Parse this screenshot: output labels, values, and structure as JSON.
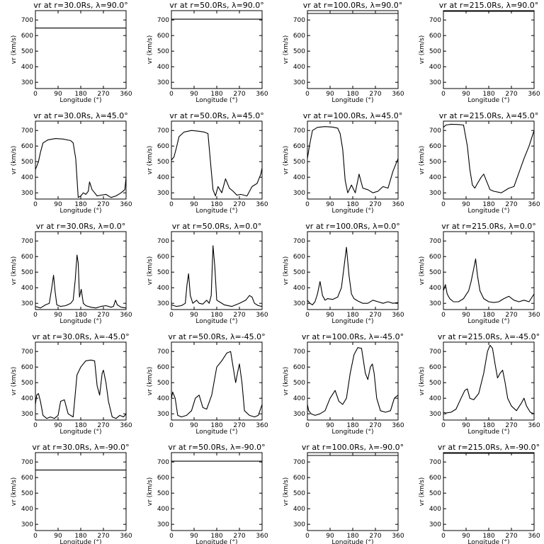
{
  "chart_data": [
    {
      "type": "line",
      "title": "vr at r=30.0Rs, λ=90.0°",
      "xlabel": "Longitude (°)",
      "ylabel": "vr (km/s)",
      "xlim": [
        0,
        360
      ],
      "ylim": [
        260,
        760
      ],
      "xticks": [
        "0",
        "90",
        "180",
        "270",
        "360"
      ],
      "yticks": [
        "300",
        "400",
        "500",
        "600",
        "700"
      ],
      "x": [
        0,
        360
      ],
      "y": [
        648,
        648
      ]
    },
    {
      "type": "line",
      "title": "vr at r=50.0Rs, λ=90.0°",
      "xlabel": "Longitude (°)",
      "ylabel": "vr (km/s)",
      "xlim": [
        0,
        360
      ],
      "ylim": [
        260,
        760
      ],
      "xticks": [
        "0",
        "90",
        "180",
        "270",
        "360"
      ],
      "yticks": [
        "300",
        "400",
        "500",
        "600",
        "700"
      ],
      "x": [
        0,
        360
      ],
      "y": [
        705,
        705
      ]
    },
    {
      "type": "line",
      "title": "vr at r=100.0Rs, λ=90.0°",
      "xlabel": "Longitude (°)",
      "ylabel": "vr (km/s)",
      "xlim": [
        0,
        360
      ],
      "ylim": [
        260,
        760
      ],
      "xticks": [
        "0",
        "90",
        "180",
        "270",
        "360"
      ],
      "yticks": [
        "300",
        "400",
        "500",
        "600",
        "700"
      ],
      "x": [
        0,
        360
      ],
      "y": [
        742,
        742
      ]
    },
    {
      "type": "line",
      "title": "vr at r=215.0Rs, λ=90.0°",
      "xlabel": "Longitude (°)",
      "ylabel": "vr (km/s)",
      "xlim": [
        0,
        360
      ],
      "ylim": [
        260,
        760
      ],
      "xticks": [
        "0",
        "90",
        "180",
        "270",
        "360"
      ],
      "yticks": [
        "300",
        "400",
        "500",
        "600",
        "700"
      ],
      "x": [
        0,
        360
      ],
      "y": [
        756,
        756
      ]
    },
    {
      "type": "line",
      "title": "vr at r=30.0Rs, λ=45.0°",
      "xlabel": "Longitude (°)",
      "ylabel": "vr (km/s)",
      "xlim": [
        0,
        360
      ],
      "ylim": [
        260,
        760
      ],
      "xticks": [
        "0",
        "90",
        "180",
        "270",
        "360"
      ],
      "yticks": [
        "300",
        "400",
        "500",
        "600",
        "700"
      ],
      "x": [
        0,
        5,
        12,
        20,
        30,
        50,
        80,
        110,
        140,
        150,
        160,
        170,
        180,
        190,
        200,
        210,
        215,
        225,
        235,
        245,
        260,
        280,
        300,
        320,
        340,
        355,
        360
      ],
      "y": [
        450,
        470,
        500,
        560,
        620,
        640,
        648,
        645,
        635,
        620,
        520,
        270,
        280,
        300,
        290,
        310,
        370,
        320,
        300,
        280,
        285,
        290,
        270,
        280,
        300,
        320,
        400
      ]
    },
    {
      "type": "line",
      "title": "vr at r=50.0Rs, λ=45.0°",
      "xlabel": "Longitude (°)",
      "ylabel": "vr (km/s)",
      "xlim": [
        0,
        360
      ],
      "ylim": [
        260,
        760
      ],
      "xticks": [
        "0",
        "90",
        "180",
        "270",
        "360"
      ],
      "yticks": [
        "300",
        "400",
        "500",
        "600",
        "700"
      ],
      "x": [
        0,
        10,
        20,
        30,
        50,
        80,
        110,
        130,
        145,
        155,
        165,
        175,
        185,
        200,
        215,
        230,
        245,
        260,
        275,
        300,
        320,
        340,
        355,
        360
      ],
      "y": [
        510,
        530,
        590,
        660,
        690,
        700,
        695,
        690,
        680,
        500,
        320,
        280,
        340,
        300,
        390,
        330,
        310,
        285,
        290,
        280,
        340,
        360,
        420,
        460
      ]
    },
    {
      "type": "line",
      "title": "vr at r=100.0Rs, λ=45.0°",
      "xlabel": "Longitude (°)",
      "ylabel": "vr (km/s)",
      "xlim": [
        0,
        360
      ],
      "ylim": [
        260,
        760
      ],
      "xticks": [
        "0",
        "90",
        "180",
        "270",
        "360"
      ],
      "yticks": [
        "300",
        "400",
        "500",
        "600",
        "700"
      ],
      "x": [
        0,
        8,
        20,
        40,
        70,
        100,
        120,
        130,
        140,
        150,
        160,
        175,
        190,
        205,
        220,
        240,
        260,
        280,
        300,
        320,
        340,
        360
      ],
      "y": [
        520,
        600,
        700,
        720,
        725,
        722,
        715,
        680,
        580,
        380,
        300,
        350,
        300,
        420,
        330,
        320,
        300,
        310,
        340,
        330,
        440,
        520
      ]
    },
    {
      "type": "line",
      "title": "vr at r=215.0Rs, λ=45.0°",
      "xlabel": "Longitude (°)",
      "ylabel": "vr (km/s)",
      "xlim": [
        0,
        360
      ],
      "ylim": [
        260,
        760
      ],
      "xticks": [
        "0",
        "90",
        "180",
        "270",
        "360"
      ],
      "yticks": [
        "300",
        "400",
        "500",
        "600",
        "700"
      ],
      "x": [
        0,
        10,
        30,
        60,
        80,
        95,
        105,
        115,
        125,
        135,
        150,
        160,
        170,
        185,
        200,
        230,
        260,
        280,
        300,
        320,
        340,
        360
      ],
      "y": [
        720,
        735,
        740,
        738,
        735,
        600,
        450,
        350,
        330,
        360,
        400,
        420,
        380,
        320,
        310,
        300,
        330,
        340,
        430,
        520,
        600,
        700
      ]
    },
    {
      "type": "line",
      "title": "vr at r=30.0Rs, λ=0.0°",
      "xlabel": "Longitude (°)",
      "ylabel": "vr (km/s)",
      "xlim": [
        0,
        360
      ],
      "ylim": [
        260,
        760
      ],
      "xticks": [
        "0",
        "90",
        "180",
        "270",
        "360"
      ],
      "yticks": [
        "300",
        "400",
        "500",
        "600",
        "700"
      ],
      "x": [
        0,
        20,
        40,
        55,
        65,
        72,
        78,
        85,
        100,
        120,
        140,
        150,
        158,
        165,
        170,
        175,
        182,
        190,
        200,
        220,
        240,
        260,
        280,
        300,
        310,
        318,
        325,
        340,
        360
      ],
      "y": [
        280,
        270,
        290,
        300,
        400,
        480,
        380,
        290,
        280,
        285,
        300,
        320,
        450,
        610,
        560,
        340,
        390,
        300,
        285,
        275,
        270,
        280,
        285,
        275,
        280,
        320,
        290,
        275,
        270
      ]
    },
    {
      "type": "line",
      "title": "vr at r=50.0Rs, λ=0.0°",
      "xlabel": "Longitude (°)",
      "ylabel": "vr (km/s)",
      "xlim": [
        0,
        360
      ],
      "ylim": [
        260,
        760
      ],
      "xticks": [
        "0",
        "90",
        "180",
        "270",
        "360"
      ],
      "yticks": [
        "300",
        "400",
        "500",
        "600",
        "700"
      ],
      "x": [
        0,
        20,
        40,
        55,
        62,
        68,
        75,
        85,
        100,
        110,
        125,
        140,
        150,
        158,
        165,
        172,
        180,
        190,
        210,
        240,
        270,
        295,
        310,
        320,
        330,
        345,
        360
      ],
      "y": [
        290,
        280,
        285,
        300,
        420,
        490,
        350,
        300,
        320,
        300,
        295,
        320,
        300,
        350,
        670,
        540,
        320,
        310,
        290,
        280,
        300,
        320,
        350,
        340,
        300,
        285,
        280
      ]
    },
    {
      "type": "line",
      "title": "vr at r=100.0Rs, λ=0.0°",
      "xlabel": "Longitude (°)",
      "ylabel": "vr (km/s)",
      "xlim": [
        0,
        360
      ],
      "ylim": [
        260,
        760
      ],
      "xticks": [
        "0",
        "90",
        "180",
        "270",
        "360"
      ],
      "yticks": [
        "300",
        "400",
        "500",
        "600",
        "700"
      ],
      "x": [
        0,
        10,
        20,
        30,
        40,
        50,
        60,
        70,
        80,
        100,
        120,
        135,
        145,
        155,
        165,
        175,
        185,
        200,
        220,
        240,
        260,
        280,
        300,
        320,
        340,
        360
      ],
      "y": [
        320,
        300,
        290,
        310,
        360,
        440,
        350,
        320,
        330,
        325,
        340,
        400,
        530,
        660,
        480,
        360,
        330,
        315,
        300,
        300,
        320,
        310,
        300,
        310,
        300,
        305
      ]
    },
    {
      "type": "line",
      "title": "vr at r=215.0Rs, λ=0.0°",
      "xlabel": "Longitude (°)",
      "ylabel": "vr (km/s)",
      "xlim": [
        0,
        360
      ],
      "ylim": [
        260,
        760
      ],
      "xticks": [
        "0",
        "90",
        "180",
        "270",
        "360"
      ],
      "yticks": [
        "300",
        "400",
        "500",
        "600",
        "700"
      ],
      "x": [
        0,
        8,
        15,
        25,
        40,
        60,
        80,
        100,
        110,
        120,
        128,
        135,
        145,
        160,
        180,
        200,
        220,
        240,
        260,
        280,
        300,
        320,
        340,
        360
      ],
      "y": [
        380,
        420,
        360,
        330,
        310,
        310,
        330,
        380,
        440,
        520,
        585,
        480,
        380,
        330,
        310,
        305,
        310,
        330,
        345,
        320,
        310,
        320,
        310,
        360
      ]
    },
    {
      "type": "line",
      "title": "vr at r=30.0Rs, λ=-45.0°",
      "xlabel": "Longitude (°)",
      "ylabel": "vr (km/s)",
      "xlim": [
        0,
        360
      ],
      "ylim": [
        260,
        760
      ],
      "xticks": [
        "0",
        "90",
        "180",
        "270",
        "360"
      ],
      "yticks": [
        "300",
        "400",
        "500",
        "600",
        "700"
      ],
      "x": [
        0,
        5,
        12,
        20,
        30,
        45,
        60,
        75,
        90,
        100,
        115,
        130,
        150,
        165,
        180,
        200,
        220,
        235,
        245,
        255,
        265,
        270,
        280,
        290,
        305,
        320,
        335,
        350,
        360
      ],
      "y": [
        360,
        420,
        430,
        380,
        290,
        270,
        280,
        270,
        290,
        380,
        390,
        300,
        280,
        550,
        600,
        640,
        645,
        640,
        480,
        420,
        560,
        580,
        500,
        380,
        280,
        270,
        290,
        280,
        300
      ]
    },
    {
      "type": "line",
      "title": "vr at r=50.0Rs, λ=-45.0°",
      "xlabel": "Longitude (°)",
      "ylabel": "vr (km/s)",
      "xlim": [
        0,
        360
      ],
      "ylim": [
        260,
        760
      ],
      "xticks": [
        "0",
        "90",
        "180",
        "270",
        "360"
      ],
      "yticks": [
        "300",
        "400",
        "500",
        "600",
        "700"
      ],
      "x": [
        0,
        5,
        15,
        25,
        40,
        60,
        80,
        95,
        110,
        125,
        140,
        160,
        180,
        200,
        220,
        235,
        245,
        255,
        262,
        270,
        280,
        290,
        310,
        330,
        345,
        360
      ],
      "y": [
        400,
        440,
        400,
        290,
        280,
        290,
        320,
        400,
        420,
        340,
        330,
        420,
        600,
        640,
        690,
        700,
        600,
        500,
        560,
        620,
        500,
        320,
        290,
        280,
        290,
        360
      ]
    },
    {
      "type": "line",
      "title": "vr at r=100.0Rs, λ=-45.0°",
      "xlabel": "Longitude (°)",
      "ylabel": "vr (km/s)",
      "xlim": [
        0,
        360
      ],
      "ylim": [
        260,
        760
      ],
      "xticks": [
        "0",
        "90",
        "180",
        "270",
        "360"
      ],
      "yticks": [
        "300",
        "400",
        "500",
        "600",
        "700"
      ],
      "x": [
        0,
        5,
        15,
        30,
        50,
        70,
        90,
        110,
        125,
        140,
        155,
        170,
        185,
        200,
        215,
        230,
        240,
        250,
        258,
        265,
        275,
        290,
        310,
        330,
        345,
        360
      ],
      "y": [
        360,
        320,
        300,
        290,
        300,
        320,
        400,
        450,
        380,
        360,
        400,
        560,
        680,
        725,
        720,
        560,
        520,
        600,
        620,
        560,
        400,
        320,
        310,
        320,
        400,
        420
      ]
    },
    {
      "type": "line",
      "title": "vr at r=215.0Rs, λ=-45.0°",
      "xlabel": "Longitude (°)",
      "ylabel": "vr (km/s)",
      "xlim": [
        0,
        360
      ],
      "ylim": [
        260,
        760
      ],
      "xticks": [
        "0",
        "90",
        "180",
        "270",
        "360"
      ],
      "yticks": [
        "300",
        "400",
        "500",
        "600",
        "700"
      ],
      "x": [
        0,
        10,
        30,
        50,
        70,
        85,
        95,
        105,
        120,
        140,
        160,
        175,
        185,
        195,
        205,
        215,
        225,
        235,
        245,
        255,
        270,
        290,
        310,
        320,
        330,
        345,
        360
      ],
      "y": [
        310,
        305,
        310,
        330,
        400,
        450,
        460,
        400,
        390,
        430,
        560,
        700,
        740,
        720,
        620,
        530,
        560,
        580,
        500,
        400,
        350,
        320,
        370,
        400,
        350,
        310,
        300
      ]
    },
    {
      "type": "line",
      "title": "vr at r=30.0Rs, λ=-90.0°",
      "xlabel": "Longitude (°)",
      "ylabel": "vr (km/s)",
      "xlim": [
        0,
        360
      ],
      "ylim": [
        260,
        760
      ],
      "xticks": [
        "0",
        "90",
        "180",
        "270",
        "360"
      ],
      "yticks": [
        "300",
        "400",
        "500",
        "600",
        "700"
      ],
      "x": [
        0,
        360
      ],
      "y": [
        648,
        648
      ]
    },
    {
      "type": "line",
      "title": "vr at r=50.0Rs, λ=-90.0°",
      "xlabel": "Longitude (°)",
      "ylabel": "vr (km/s)",
      "xlim": [
        0,
        360
      ],
      "ylim": [
        260,
        760
      ],
      "xticks": [
        "0",
        "90",
        "180",
        "270",
        "360"
      ],
      "yticks": [
        "300",
        "400",
        "500",
        "600",
        "700"
      ],
      "x": [
        0,
        360
      ],
      "y": [
        705,
        705
      ]
    },
    {
      "type": "line",
      "title": "vr at r=100.0Rs, λ=-90.0°",
      "xlabel": "Longitude (°)",
      "ylabel": "vr (km/s)",
      "xlim": [
        0,
        360
      ],
      "ylim": [
        260,
        760
      ],
      "xticks": [
        "0",
        "90",
        "180",
        "270",
        "360"
      ],
      "yticks": [
        "300",
        "400",
        "500",
        "600",
        "700"
      ],
      "x": [
        0,
        360
      ],
      "y": [
        742,
        742
      ]
    },
    {
      "type": "line",
      "title": "vr at r=215.0Rs, λ=-90.0°",
      "xlabel": "Longitude (°)",
      "ylabel": "vr (km/s)",
      "xlim": [
        0,
        360
      ],
      "ylim": [
        260,
        760
      ],
      "xticks": [
        "0",
        "90",
        "180",
        "270",
        "360"
      ],
      "yticks": [
        "300",
        "400",
        "500",
        "600",
        "700"
      ],
      "x": [
        0,
        360
      ],
      "y": [
        756,
        756
      ]
    }
  ]
}
